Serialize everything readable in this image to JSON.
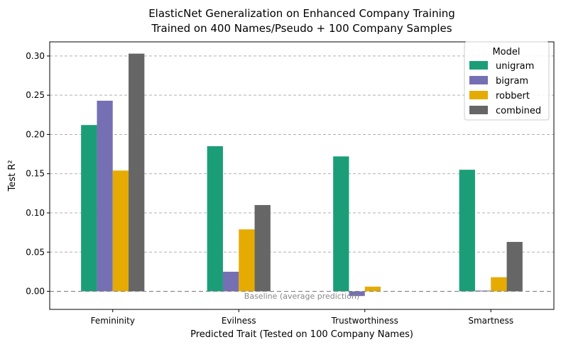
{
  "chart_data": {
    "type": "bar",
    "title_line1": "ElasticNet Generalization on Enhanced Company Training",
    "title_line2": "Trained on 400 Names/Pseudo + 100 Company Samples",
    "xlabel": "Predicted Trait (Tested on 100 Company Names)",
    "ylabel": "Test R²",
    "categories": [
      "Femininity",
      "Evilness",
      "Trustworthiness",
      "Smartness"
    ],
    "series": [
      {
        "name": "unigram",
        "color": "#1b9e77",
        "values": [
          0.212,
          0.185,
          0.172,
          0.155
        ]
      },
      {
        "name": "bigram",
        "color": "#7570b3",
        "values": [
          0.243,
          0.025,
          -0.006,
          0.001
        ]
      },
      {
        "name": "robbert",
        "color": "#e6ab02",
        "values": [
          0.154,
          0.079,
          0.006,
          0.018
        ]
      },
      {
        "name": "combined",
        "color": "#666666",
        "values": [
          0.303,
          0.11,
          0.0,
          0.063
        ]
      }
    ],
    "ylim": [
      -0.023,
      0.318
    ],
    "yticks": [
      "0.00",
      "0.05",
      "0.10",
      "0.15",
      "0.20",
      "0.25",
      "0.30"
    ],
    "ytick_values": [
      0,
      0.05,
      0.1,
      0.15,
      0.2,
      0.25,
      0.3
    ],
    "grid": true,
    "legend_title": "Model",
    "legend_position": "top-right",
    "baseline_label": "Baseline (average prediction)",
    "baseline_value": 0
  }
}
